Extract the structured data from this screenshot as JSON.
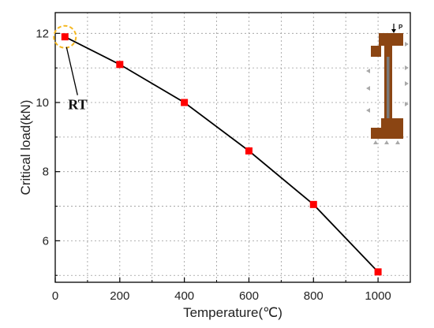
{
  "chart_data": {
    "type": "line",
    "title": "",
    "xlabel": "Temperature(℃)",
    "ylabel": "Critical load(kN)",
    "xlim": [
      0,
      1100
    ],
    "ylim": [
      4.8,
      12.6
    ],
    "x_ticks": [
      0,
      200,
      400,
      600,
      800,
      1000
    ],
    "y_ticks": [
      6,
      8,
      10,
      12
    ],
    "grid": true,
    "series": [
      {
        "x": [
          30,
          200,
          400,
          600,
          800,
          1000
        ],
        "values": [
          11.9,
          11.1,
          10.0,
          8.6,
          7.05,
          5.1
        ],
        "marker_color": "#ff0000",
        "line_color": "#000000"
      }
    ],
    "annotations": [
      {
        "text": "RT",
        "target_index": 0,
        "highlight_color": "#f5b820"
      }
    ],
    "inset": {
      "load_label": "P",
      "body_color": "#8b4513",
      "support_color": "#a9a9a9"
    }
  }
}
